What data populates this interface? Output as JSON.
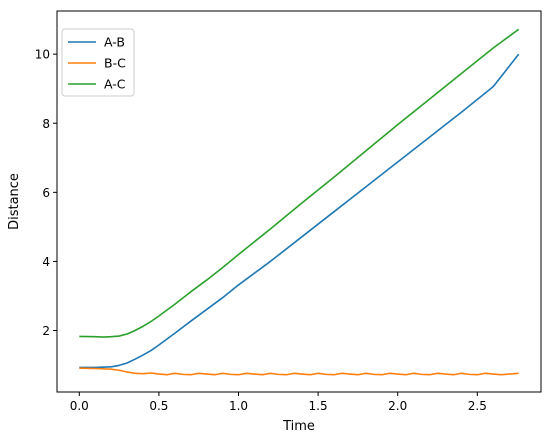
{
  "chart_data": {
    "type": "line",
    "title": "",
    "xlabel": "Time",
    "ylabel": "Distance",
    "xlim": [
      -0.14,
      2.9
    ],
    "ylim": [
      0.22,
      11.25
    ],
    "xticks": [
      0.0,
      0.5,
      1.0,
      1.5,
      2.0,
      2.5
    ],
    "xtick_labels": [
      "0.0",
      "0.5",
      "1.0",
      "1.5",
      "2.0",
      "2.5"
    ],
    "yticks": [
      2,
      4,
      6,
      8,
      10
    ],
    "ytick_labels": [
      "2",
      "4",
      "6",
      "8",
      "10"
    ],
    "grid": false,
    "legend_position": "top-left",
    "series": [
      {
        "name": "A-B",
        "color": "#1f77b4",
        "x": [
          0.0,
          0.1,
          0.2,
          0.25,
          0.3,
          0.35,
          0.4,
          0.45,
          0.5,
          0.6,
          0.7,
          0.8,
          0.9,
          1.0,
          1.2,
          1.4,
          1.6,
          1.8,
          2.0,
          2.2,
          2.4,
          2.6,
          2.76
        ],
        "y": [
          0.93,
          0.93,
          0.95,
          0.99,
          1.06,
          1.17,
          1.29,
          1.42,
          1.58,
          1.92,
          2.27,
          2.61,
          2.95,
          3.32,
          4.0,
          4.72,
          5.44,
          6.16,
          6.88,
          7.6,
          8.32,
          9.06,
          10.0
        ]
      },
      {
        "name": "B-C",
        "color": "#ff7f0e",
        "x": [
          0.0,
          0.1,
          0.2,
          0.25,
          0.3,
          0.35,
          0.4,
          0.45,
          0.5,
          0.55,
          0.6,
          0.65,
          0.7,
          0.75,
          0.8,
          0.85,
          0.9,
          0.95,
          1.0,
          1.05,
          1.1,
          1.15,
          1.2,
          1.25,
          1.3,
          1.35,
          1.4,
          1.45,
          1.5,
          1.55,
          1.6,
          1.65,
          1.7,
          1.75,
          1.8,
          1.85,
          1.9,
          1.95,
          2.0,
          2.05,
          2.1,
          2.15,
          2.2,
          2.25,
          2.3,
          2.35,
          2.4,
          2.45,
          2.5,
          2.55,
          2.6,
          2.65,
          2.7,
          2.76
        ],
        "y": [
          0.91,
          0.9,
          0.88,
          0.85,
          0.8,
          0.76,
          0.75,
          0.77,
          0.74,
          0.72,
          0.76,
          0.73,
          0.72,
          0.76,
          0.74,
          0.72,
          0.76,
          0.73,
          0.72,
          0.76,
          0.74,
          0.72,
          0.76,
          0.73,
          0.72,
          0.76,
          0.74,
          0.72,
          0.76,
          0.73,
          0.72,
          0.76,
          0.74,
          0.72,
          0.76,
          0.73,
          0.72,
          0.76,
          0.74,
          0.72,
          0.76,
          0.73,
          0.72,
          0.76,
          0.74,
          0.72,
          0.76,
          0.73,
          0.72,
          0.76,
          0.74,
          0.72,
          0.74,
          0.76
        ]
      },
      {
        "name": "A-C",
        "color": "#2ca02c",
        "x": [
          0.0,
          0.1,
          0.15,
          0.2,
          0.25,
          0.3,
          0.35,
          0.4,
          0.45,
          0.5,
          0.6,
          0.7,
          0.8,
          0.9,
          1.0,
          1.2,
          1.4,
          1.6,
          1.8,
          2.0,
          2.2,
          2.4,
          2.6,
          2.76
        ],
        "y": [
          1.83,
          1.82,
          1.81,
          1.82,
          1.84,
          1.9,
          2.0,
          2.12,
          2.26,
          2.42,
          2.76,
          3.12,
          3.46,
          3.82,
          4.2,
          4.94,
          5.7,
          6.44,
          7.2,
          7.96,
          8.7,
          9.44,
          10.18,
          10.72
        ]
      }
    ]
  }
}
